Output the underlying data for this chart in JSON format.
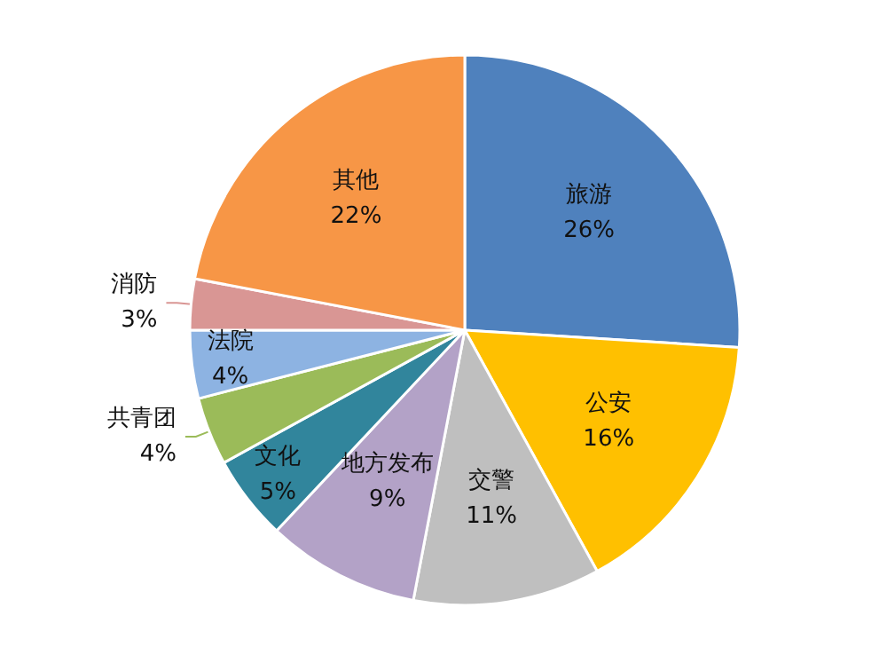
{
  "chart_data": {
    "type": "pie",
    "categories": [
      "旅游",
      "公安",
      "交警",
      "地方发布",
      "文化",
      "共青团",
      "法院",
      "消防",
      "其他"
    ],
    "values": [
      26,
      16,
      11,
      9,
      5,
      4,
      4,
      3,
      22
    ],
    "value_labels": [
      "26%",
      "16%",
      "11%",
      "9%",
      "5%",
      "4%",
      "4%",
      "3%",
      "22%"
    ],
    "colors": [
      "#4f81bd",
      "#ffc000",
      "#bfbfbf",
      "#b3a2c7",
      "#31859c",
      "#9bbb59",
      "#8db3e2",
      "#d99694",
      "#f79646"
    ],
    "legend": false
  }
}
